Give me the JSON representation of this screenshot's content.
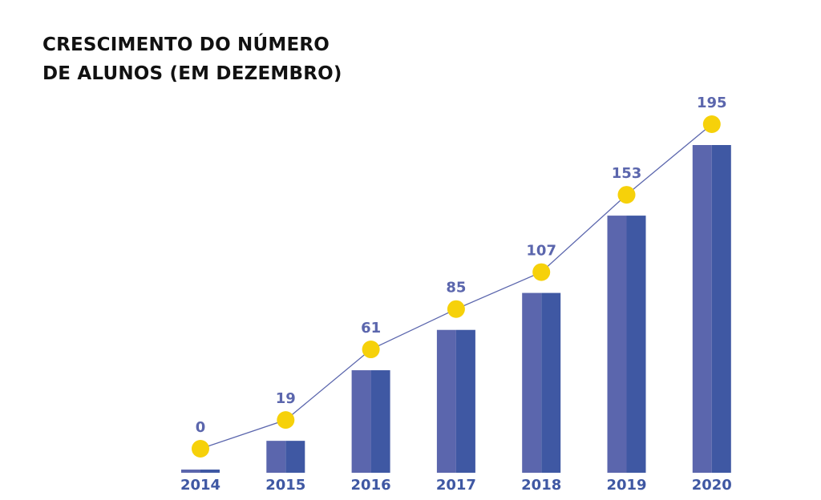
{
  "colors": {
    "bar_left": "#5b66ad",
    "bar_right": "#3f58a3",
    "line": "#5b66ad",
    "marker": "#f6d10a",
    "value_label": "#5b66ad",
    "category_label": "#3f58a3",
    "title": "#111111"
  },
  "chart_data": {
    "type": "bar",
    "title": "CRESCIMENTO DO NÚMERO\nDE ALUNOS (EM DEZEMBRO)",
    "xlabel": "",
    "ylabel": "",
    "categories": [
      "2014",
      "2015",
      "2016",
      "2017",
      "2018",
      "2019",
      "2020"
    ],
    "values": [
      0,
      19,
      61,
      85,
      107,
      153,
      195
    ],
    "value_labels": [
      "0",
      "19",
      "61",
      "85",
      "107",
      "153",
      "195"
    ],
    "ylim": [
      0,
      200
    ],
    "grid": false,
    "legend": "none",
    "overlay_line": true,
    "markers": "yellow circles"
  }
}
